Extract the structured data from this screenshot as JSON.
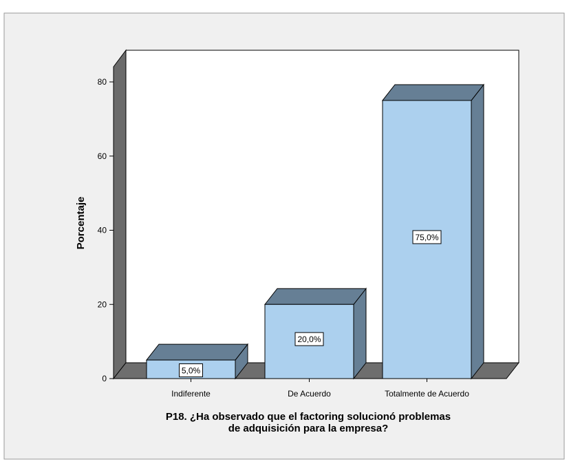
{
  "chart_data": {
    "type": "bar",
    "categories": [
      "Indiferente",
      "De Acuerdo",
      "Totalmente de Acuerdo"
    ],
    "values": [
      5.0,
      20.0,
      75.0
    ],
    "data_labels": [
      "5,0%",
      "20,0%",
      "75,0%"
    ],
    "xlabel": "P18. ¿Ha observado que el factoring solucionó problemas de adquisición para la empresa?",
    "xlabel_lines": [
      "P18. ¿Ha observado que el factoring solucionó problemas",
      "de adquisición para la empresa?"
    ],
    "ylabel": "Porcentaje",
    "ylim": [
      0,
      80
    ],
    "yticks": [
      "0",
      "20",
      "40",
      "60",
      "80"
    ],
    "grid": false,
    "colors": {
      "bar_front": "#acd0ee",
      "bar_side": "#667f95",
      "wall_dark": "#6b6b6b",
      "floor": "#6e6e6e",
      "background": "#f0f0f0"
    }
  }
}
